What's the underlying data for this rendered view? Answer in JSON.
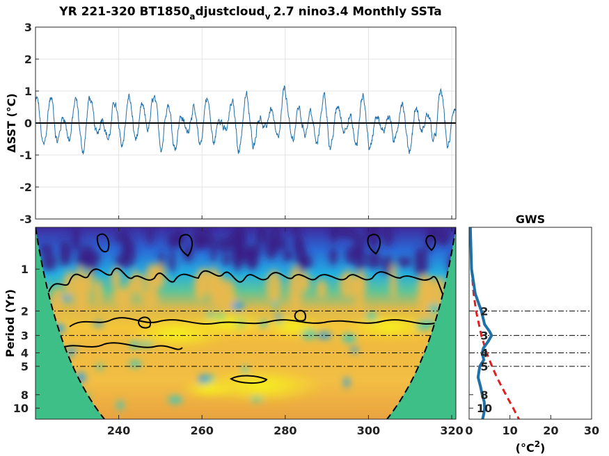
{
  "title": {
    "main": "YR 221-320 BT1850",
    "sub1": "a",
    "mid": "djustcloud",
    "sub2": "v",
    "tail": "2.7 nino3.4 Monthly SSTa"
  },
  "chart_data": [
    {
      "type": "line",
      "name": "timeseries",
      "ylabel": "ΔSST (°C)",
      "ylim": [
        -3,
        3
      ],
      "xlim": [
        220,
        321
      ],
      "yticks": [
        "3",
        "2",
        "1",
        "0",
        "-1",
        "-2",
        "-3"
      ],
      "grid": true,
      "series_color": "#1f6fa8",
      "zero_line": 0,
      "x_start": 220,
      "x_end": 321,
      "months": 1200
    },
    {
      "type": "heatmap",
      "name": "wavelet-power",
      "ylabel": "Period (Yr)",
      "xlim": [
        220,
        321
      ],
      "xticks": [
        "240",
        "260",
        "280",
        "300",
        "320"
      ],
      "yticks": [
        "1",
        "2",
        "3",
        "4",
        "5",
        "8",
        "10"
      ],
      "ytick_values": [
        1,
        2,
        3,
        4,
        5,
        8,
        10
      ],
      "yscale": "log",
      "period_range": [
        0.5,
        12
      ],
      "reference_periods": [
        2,
        3,
        4,
        5
      ],
      "colormap": "parula",
      "significance_contours": true,
      "cone_of_influence": true
    },
    {
      "type": "line",
      "name": "global-wavelet-spectrum",
      "title": "GWS",
      "xlabel": "(°C²)",
      "xticks": [
        "0",
        "10",
        "20",
        "30"
      ],
      "xlim": [
        0,
        30
      ],
      "yscale": "log",
      "yticks": [
        "2",
        "3",
        "4",
        "5",
        "8",
        "10"
      ],
      "reference_periods": [
        2,
        3,
        4,
        5
      ],
      "series": [
        {
          "kind": "gws",
          "color": "#1f6fa8",
          "period": [
            0.5,
            1,
            1.5,
            2,
            2.5,
            2.8,
            3,
            3.3,
            3.7,
            4,
            4.5,
            5,
            6,
            7,
            8,
            9,
            10,
            11,
            12
          ],
          "values": [
            0.3,
            0.6,
            1.5,
            3.0,
            3.8,
            5.0,
            5.5,
            4.7,
            3.5,
            3.2,
            3.6,
            2.6,
            2.2,
            2.8,
            3.2,
            3.7,
            3.8,
            3.6,
            3.3
          ]
        },
        {
          "kind": "significance",
          "color": "#e02020",
          "period": [
            0.5,
            1,
            1.5,
            2,
            3,
            4,
            5,
            6,
            8,
            10,
            12
          ],
          "values": [
            0.3,
            0.6,
            1.1,
            1.7,
            3.0,
            4.3,
            5.6,
            6.8,
            9.0,
            10.8,
            12.2
          ]
        }
      ]
    }
  ]
}
